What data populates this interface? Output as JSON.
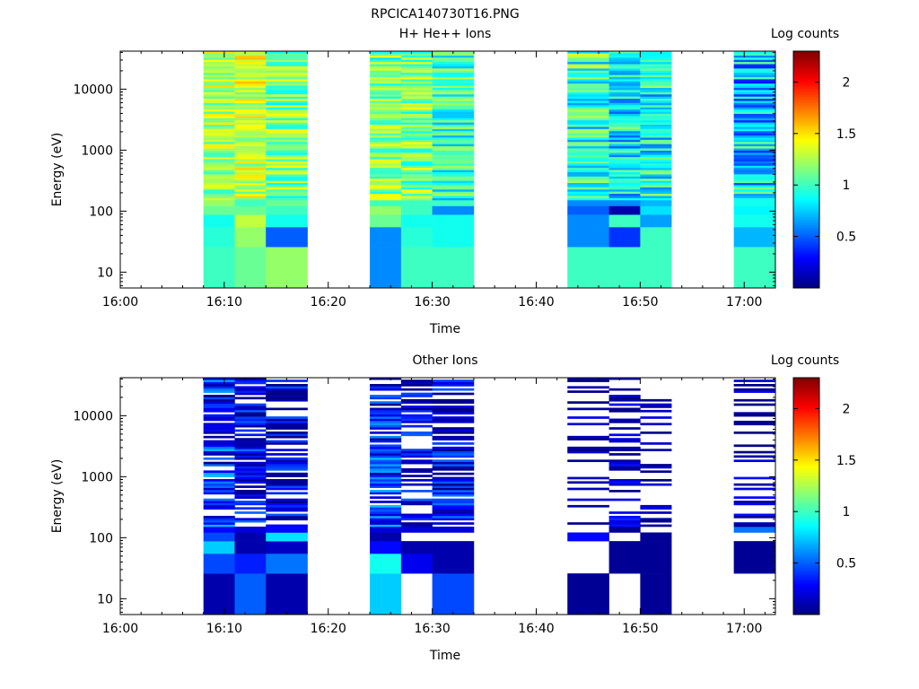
{
  "figure": {
    "title": "RPCICA140730T16.PNG"
  },
  "colormap": {
    "name": "jet",
    "stops": [
      "#00007f",
      "#0000ff",
      "#007fff",
      "#00ffff",
      "#7fff7f",
      "#ffff00",
      "#ff7f00",
      "#ff0000",
      "#7f0000"
    ]
  },
  "chart_data": [
    {
      "type": "heatmap",
      "title": "H+ He++ Ions",
      "xlabel": "Time",
      "ylabel": "Energy (eV)",
      "colorbar_label": "Log counts",
      "yscale": "log",
      "xlim": [
        "16:00",
        "17:03"
      ],
      "ylim": [
        5.5,
        42000
      ],
      "x_ticks": [
        "16:00",
        "16:10",
        "16:20",
        "16:30",
        "16:40",
        "16:50",
        "17:00"
      ],
      "y_ticks": [
        10,
        100,
        1000,
        10000
      ],
      "y_tick_labels": [
        "10",
        "100",
        "1000",
        "10000"
      ],
      "clim": [
        0,
        2.3
      ],
      "colorbar_ticks": [
        0.5,
        1,
        1.5,
        2
      ],
      "colorbar_tick_labels": [
        "0.5",
        "1",
        "1.5",
        "2"
      ],
      "columns": [
        {
          "start": "16:08",
          "end": "16:11",
          "low": [
            1.0,
            0.95,
            0.9,
            1.1,
            1.2
          ],
          "mid": 1.2,
          "high": 1.3,
          "var": 0.25
        },
        {
          "start": "16:11",
          "end": "16:14",
          "low": [
            1.1,
            1.2,
            1.3,
            1.1,
            1.0
          ],
          "mid": 1.3,
          "high": 1.35,
          "var": 0.25
        },
        {
          "start": "16:14",
          "end": "16:18",
          "low": [
            1.2,
            0.5,
            0.9,
            1.0,
            1.1
          ],
          "mid": 1.1,
          "high": 1.15,
          "var": 0.3
        },
        {
          "start": "16:24",
          "end": "16:27",
          "low": [
            0.6,
            0.6,
            1.1,
            1.2,
            1.0
          ],
          "mid": 1.2,
          "high": 1.1,
          "var": 0.3
        },
        {
          "start": "16:27",
          "end": "16:30",
          "low": [
            1.0,
            0.95,
            0.9,
            1.0,
            1.0
          ],
          "mid": 1.15,
          "high": 1.1,
          "var": 0.3
        },
        {
          "start": "16:30",
          "end": "16:34",
          "low": [
            1.0,
            0.9,
            0.9,
            0.6,
            1.0
          ],
          "mid": 0.95,
          "high": 1.0,
          "var": 0.3
        },
        {
          "start": "16:43",
          "end": "16:47",
          "low": [
            1.0,
            0.6,
            0.6,
            0.5,
            0.6
          ],
          "mid": 0.85,
          "high": 1.0,
          "var": 0.35
        },
        {
          "start": "16:47",
          "end": "16:50",
          "low": [
            1.0,
            0.4,
            1.0,
            0.1,
            0.6
          ],
          "mid": 0.8,
          "high": 0.9,
          "var": 0.35
        },
        {
          "start": "16:50",
          "end": "16:53",
          "low": [
            1.0,
            1.0,
            0.65,
            0.8,
            0.7
          ],
          "mid": 0.9,
          "high": 0.85,
          "var": 0.35
        },
        {
          "start": "16:59",
          "end": "17:03",
          "low": [
            1.0,
            0.7,
            0.9,
            0.85,
            0.9
          ],
          "mid": 0.8,
          "high": 0.7,
          "var": 0.4
        }
      ]
    },
    {
      "type": "heatmap",
      "title": "Other Ions",
      "xlabel": "Time",
      "ylabel": "Energy (eV)",
      "colorbar_label": "Log counts",
      "yscale": "log",
      "xlim": [
        "16:00",
        "17:03"
      ],
      "ylim": [
        5.5,
        42000
      ],
      "x_ticks": [
        "16:00",
        "16:10",
        "16:20",
        "16:30",
        "16:40",
        "16:50",
        "17:00"
      ],
      "y_ticks": [
        10,
        100,
        1000,
        10000
      ],
      "y_tick_labels": [
        "10",
        "100",
        "1000",
        "10000"
      ],
      "clim": [
        0,
        2.3
      ],
      "colorbar_ticks": [
        0.5,
        1,
        1.5,
        2
      ],
      "colorbar_tick_labels": [
        "0.5",
        "1",
        "1.5",
        "2"
      ],
      "columns": [
        {
          "start": "16:08",
          "end": "16:11",
          "low": [
            0.1,
            0.45,
            0.75,
            0.45,
            0.3
          ],
          "mid": 0.4,
          "high": 0.3,
          "var": 0.35,
          "empty": 0.15
        },
        {
          "start": "16:11",
          "end": "16:14",
          "low": [
            0.5,
            0.35,
            0.1,
            0.1,
            0.2
          ],
          "mid": 0.3,
          "high": 0.2,
          "var": 0.3,
          "empty": 0.3
        },
        {
          "start": "16:14",
          "end": "16:18",
          "low": [
            0.1,
            0.55,
            0.15,
            0.8,
            0.3
          ],
          "mid": 0.3,
          "high": 0.2,
          "var": 0.3,
          "empty": 0.3
        },
        {
          "start": "16:24",
          "end": "16:27",
          "low": [
            0.75,
            0.9,
            0.3,
            0.1,
            0.2
          ],
          "mid": 0.45,
          "high": 0.3,
          "var": 0.35,
          "empty": 0.3
        },
        {
          "start": "16:27",
          "end": "16:30",
          "low": [
            null,
            0.25,
            0.1,
            null,
            0.2
          ],
          "mid": 0.3,
          "high": 0.2,
          "var": 0.3,
          "empty": 0.45
        },
        {
          "start": "16:30",
          "end": "16:34",
          "low": [
            0.45,
            0.1,
            0.1,
            null,
            0.2
          ],
          "mid": 0.3,
          "high": 0.15,
          "var": 0.3,
          "empty": 0.4
        },
        {
          "start": "16:43",
          "end": "16:47",
          "low": [
            0.05,
            null,
            null,
            0.3,
            null
          ],
          "mid": 0.1,
          "high": 0.1,
          "var": 0.15,
          "empty": 0.7
        },
        {
          "start": "16:47",
          "end": "16:50",
          "low": [
            null,
            0.05,
            0.05,
            null,
            0.05
          ],
          "mid": 0.2,
          "high": 0.1,
          "var": 0.2,
          "empty": 0.55
        },
        {
          "start": "16:50",
          "end": "16:53",
          "low": [
            0.05,
            0.05,
            0.05,
            0.05,
            null
          ],
          "mid": 0.1,
          "high": 0.1,
          "var": 0.15,
          "empty": 0.7
        },
        {
          "start": "16:59",
          "end": "17:03",
          "low": [
            null,
            0.05,
            0.05,
            null,
            0.55
          ],
          "mid": 0.15,
          "high": 0.1,
          "var": 0.2,
          "empty": 0.65
        }
      ]
    }
  ]
}
